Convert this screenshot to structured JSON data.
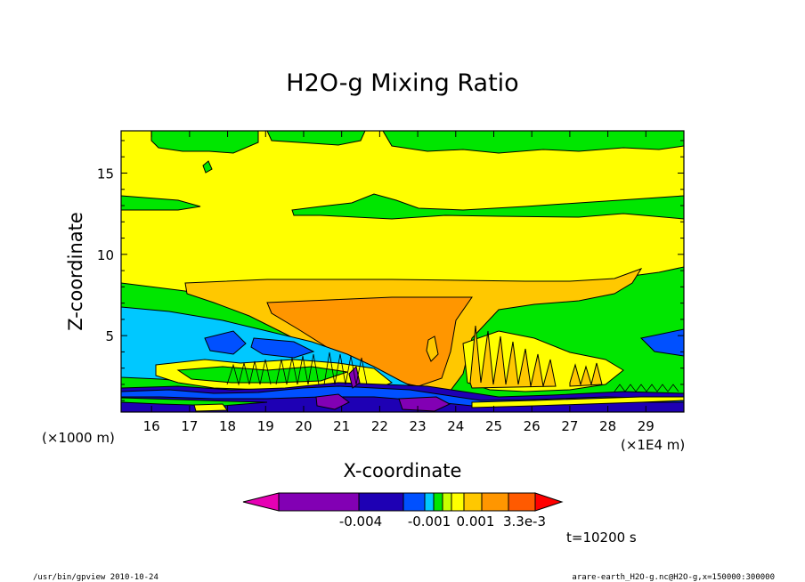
{
  "chart_data": {
    "type": "heatmap",
    "title": "H2O-g Mixing Ratio",
    "xlabel": "X-coordinate",
    "ylabel": "Z-coordinate",
    "x_unit_left": "(×1000 m)",
    "x_unit_right": "(×1E4 m)",
    "xlim": [
      15.2,
      30.0
    ],
    "ylim": [
      0.3,
      17.6
    ],
    "x_ticks": [
      16,
      17,
      18,
      19,
      20,
      21,
      22,
      23,
      24,
      25,
      26,
      27,
      28,
      29
    ],
    "y_ticks": [
      5,
      10,
      15
    ],
    "grid": false,
    "colorbar": {
      "colors": [
        "#e600b4",
        "#8200b4",
        "#1e00b4",
        "#0050ff",
        "#00c8ff",
        "#00e600",
        "#c8ff00",
        "#ffff00",
        "#ffc800",
        "#ff9600",
        "#ff5a00",
        "#ff0000"
      ],
      "labels": [
        "-0.004",
        "-0.001",
        "0.001",
        "3.3e-3"
      ]
    },
    "time_label": "t=10200 s",
    "levels": {
      "background": "#ffff00",
      "bands": [
        {
          "name": "green top patches",
          "color": "#00e600"
        },
        {
          "name": "green upper band",
          "color": "#00e600"
        },
        {
          "name": "orange anvil",
          "color": "#ffc800"
        },
        {
          "name": "dark orange core",
          "color": "#ff9600"
        },
        {
          "name": "green lower shelf",
          "color": "#00e600"
        },
        {
          "name": "cyan layer",
          "color": "#00c8ff"
        },
        {
          "name": "blue layer",
          "color": "#0050ff"
        },
        {
          "name": "navy surface layer",
          "color": "#1e00b4"
        },
        {
          "name": "purple pockets",
          "color": "#8200b4"
        }
      ]
    }
  },
  "footer": {
    "left": "/usr/bin/gpview   2010-10-24",
    "right": "arare-earth_H2O-g.nc@H2O-g,x=150000:300000"
  }
}
